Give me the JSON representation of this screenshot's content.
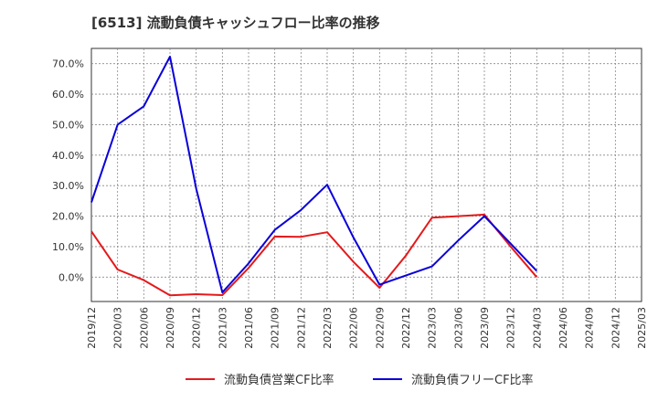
{
  "chart_data": {
    "type": "line",
    "title": "[6513]  流動負債キャッシュフロー比率の推移",
    "xlabel": "",
    "ylabel": "",
    "x": [
      "2019/12",
      "2020/03",
      "2020/06",
      "2020/09",
      "2020/12",
      "2021/03",
      "2021/06",
      "2021/09",
      "2021/12",
      "2022/03",
      "2022/06",
      "2022/09",
      "2022/12",
      "2023/03",
      "2023/06",
      "2023/09",
      "2023/12",
      "2024/03",
      "2024/06",
      "2024/09",
      "2024/12",
      "2025/03"
    ],
    "ylim": [
      -8,
      75
    ],
    "yticks": [
      0,
      10,
      20,
      30,
      40,
      50,
      60,
      70
    ],
    "ytick_labels": [
      "0.0%",
      "10.0%",
      "20.0%",
      "30.0%",
      "40.0%",
      "50.0%",
      "60.0%",
      "70.0%"
    ],
    "grid": true,
    "legend_position": "bottom",
    "series": [
      {
        "name": "流動負債営業CF比率",
        "color": "#e31a1c",
        "points": [
          {
            "x": "2019/12",
            "y": 15.0
          },
          {
            "x": "2020/03",
            "y": 2.5
          },
          {
            "x": "2020/06",
            "y": -1.0
          },
          {
            "x": "2020/09",
            "y": -6.0
          },
          {
            "x": "2020/12",
            "y": -5.6
          },
          {
            "x": "2021/03",
            "y": -5.9
          },
          {
            "x": "2021/06",
            "y": 3.0
          },
          {
            "x": "2021/09",
            "y": 13.3
          },
          {
            "x": "2021/12",
            "y": 13.2
          },
          {
            "x": "2022/03",
            "y": 14.7
          },
          {
            "x": "2022/06",
            "y": 5.0
          },
          {
            "x": "2022/09",
            "y": -3.5
          },
          {
            "x": "2022/12",
            "y": 7.0
          },
          {
            "x": "2023/03",
            "y": 19.5
          },
          {
            "x": "2023/06",
            "y": 20.0
          },
          {
            "x": "2023/09",
            "y": 20.5
          },
          {
            "x": "2023/12",
            "y": 10.0
          },
          {
            "x": "2024/03",
            "y": 0.0
          }
        ]
      },
      {
        "name": "流動負債フリーCF比率",
        "color": "#0a00d8",
        "points": [
          {
            "x": "2019/12",
            "y": 24.5
          },
          {
            "x": "2020/03",
            "y": 50.0
          },
          {
            "x": "2020/06",
            "y": 56.0
          },
          {
            "x": "2020/09",
            "y": 72.3
          },
          {
            "x": "2020/12",
            "y": 29.0
          },
          {
            "x": "2021/03",
            "y": -5.0
          },
          {
            "x": "2021/06",
            "y": 4.5
          },
          {
            "x": "2021/09",
            "y": 15.5
          },
          {
            "x": "2021/12",
            "y": 22.0
          },
          {
            "x": "2022/03",
            "y": 30.3
          },
          {
            "x": "2022/06",
            "y": 13.0
          },
          {
            "x": "2022/09",
            "y": -2.5
          },
          {
            "x": "2022/12",
            "y": 0.5
          },
          {
            "x": "2023/03",
            "y": 3.5
          },
          {
            "x": "2023/06",
            "y": 12.0
          },
          {
            "x": "2023/09",
            "y": 20.0
          },
          {
            "x": "2023/12",
            "y": 11.0
          },
          {
            "x": "2024/03",
            "y": 2.0
          }
        ]
      }
    ]
  }
}
